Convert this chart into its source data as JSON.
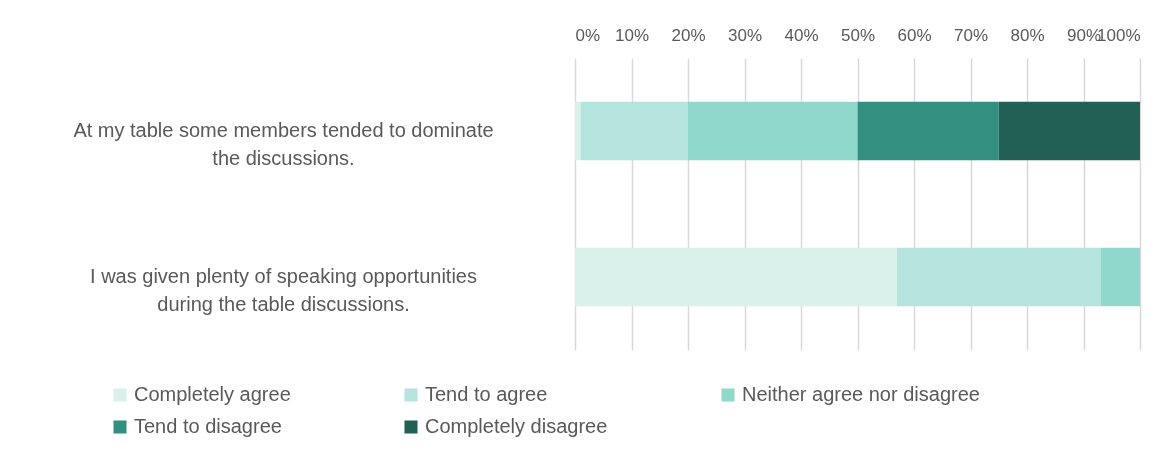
{
  "chart_data": {
    "type": "bar",
    "orientation": "horizontal",
    "stacked": true,
    "categories": [
      "At my table some members tended to dominate the discussions.",
      "I was given plenty of speaking opportunities during the table discussions."
    ],
    "series": [
      {
        "name": "Completely agree",
        "color": "#d9f0eb",
        "values": [
          1,
          57
        ]
      },
      {
        "name": "Tend to agree",
        "color": "#b5e3dd",
        "values": [
          19,
          36
        ]
      },
      {
        "name": "Neither agree nor disagree",
        "color": "#90d8cb",
        "values": [
          30,
          7
        ]
      },
      {
        "name": "Tend to disagree",
        "color": "#339080",
        "values": [
          25,
          0
        ]
      },
      {
        "name": "Completely disagree",
        "color": "#226055",
        "values": [
          25,
          0
        ]
      }
    ],
    "xlim": [
      0,
      100
    ],
    "xticks": [
      {
        "value": 0,
        "label": "0%"
      },
      {
        "value": 10,
        "label": "10%"
      },
      {
        "value": 20,
        "label": "20%"
      },
      {
        "value": 30,
        "label": "30%"
      },
      {
        "value": 40,
        "label": "40%"
      },
      {
        "value": 50,
        "label": "50%"
      },
      {
        "value": 60,
        "label": "60%"
      },
      {
        "value": 70,
        "label": "70%"
      },
      {
        "value": 80,
        "label": "80%"
      },
      {
        "value": 90,
        "label": "90%"
      },
      {
        "value": 100,
        "label": "100%"
      }
    ],
    "grid": "x",
    "legend": "bottom"
  }
}
